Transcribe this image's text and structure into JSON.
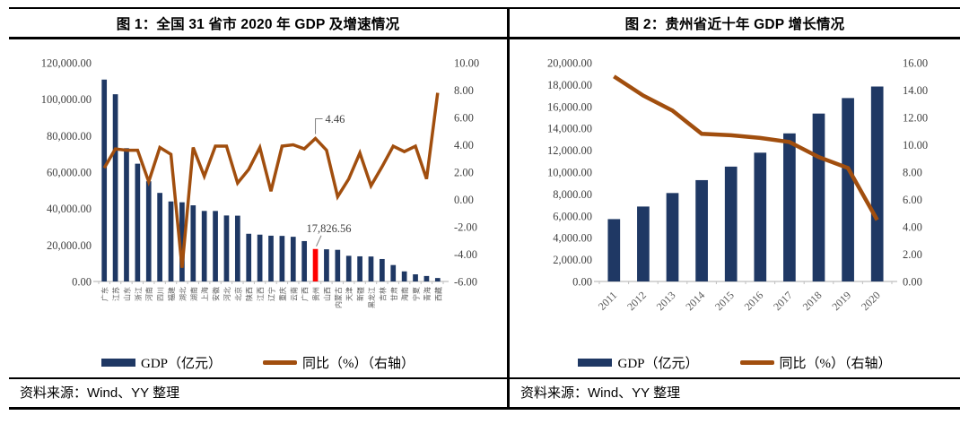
{
  "colors": {
    "bar": "#1F3864",
    "line": "#A14E0E",
    "highlight_bar": "#FF0000",
    "axis_line": "#BFBFBF",
    "tick_text": "#404040",
    "category_text": "#595959",
    "border": "#000000"
  },
  "panels": [
    {
      "title": "图 1：全国 31 省市 2020 年 GDP 及增速情况",
      "source": "资料来源：Wind、YY 整理",
      "legend": [
        {
          "swatch": "bar",
          "label": "GDP（亿元）"
        },
        {
          "swatch": "line",
          "label": "同比（%）（右轴）"
        }
      ],
      "chart_data": {
        "type": "bar",
        "title": "图 1：全国 31 省市 2020 年 GDP 及增速情况",
        "xlabel": "",
        "ylabel": "",
        "grid": false,
        "legend_position": "bottom",
        "label_rotation": -90,
        "categories": [
          "广东",
          "江苏",
          "山东",
          "浙江",
          "河南",
          "四川",
          "福建",
          "湖北",
          "湖南",
          "上海",
          "安徽",
          "河北",
          "北京",
          "陕西",
          "江西",
          "辽宁",
          "重庆",
          "云南",
          "广西",
          "贵州",
          "山西",
          "内蒙古",
          "天津",
          "新疆",
          "黑龙江",
          "吉林",
          "甘肃",
          "海南",
          "宁夏",
          "青海",
          "西藏"
        ],
        "series": [
          {
            "name": "GDP（亿元）",
            "type": "bar",
            "axis": "left",
            "values": [
              110760.94,
              102718.98,
              73129.0,
              64613.34,
              54997.07,
              48598.76,
              43903.89,
              43443.46,
              41781.49,
              38700.58,
              38680.63,
              36206.89,
              36102.55,
              26181.86,
              25691.5,
              25115.0,
              25002.79,
              24521.9,
              22156.69,
              17826.56,
              17651.93,
              17359.8,
              14083.73,
              13797.58,
              13698.5,
              12311.32,
              9016.7,
              5532.39,
              3920.55,
              3005.92,
              1902.74
            ]
          },
          {
            "name": "同比（%）（右轴）",
            "type": "line",
            "axis": "right",
            "values": [
              2.3,
              3.7,
              3.6,
              3.6,
              1.3,
              3.8,
              3.3,
              -5.0,
              3.8,
              1.7,
              3.9,
              3.9,
              1.2,
              2.2,
              3.8,
              0.6,
              3.9,
              4.0,
              3.7,
              4.46,
              3.6,
              0.2,
              1.5,
              3.4,
              1.0,
              2.4,
              3.9,
              3.5,
              3.9,
              1.5,
              7.8
            ]
          }
        ],
        "highlight": {
          "series": 0,
          "index": 19,
          "category": "贵州"
        },
        "left_axis": {
          "min": 0,
          "max": 120000,
          "tick_values": [
            0,
            20000,
            40000,
            60000,
            80000,
            100000,
            120000
          ],
          "tick_labels": [
            "0.00",
            "20,000.00",
            "40,000.00",
            "60,000.00",
            "80,000.00",
            "100,000.00",
            "120,000.00"
          ]
        },
        "right_axis": {
          "min": -6,
          "max": 10,
          "tick_values": [
            -6,
            -4,
            -2,
            0,
            2,
            4,
            6,
            8,
            10
          ],
          "tick_labels": [
            "-6.00",
            "-4.00",
            "-2.00",
            "0.00",
            "2.00",
            "4.00",
            "6.00",
            "8.00",
            "10.00"
          ]
        },
        "annotations": [
          {
            "text": "4.46",
            "attach": "line",
            "index": 19
          },
          {
            "text": "17,826.56",
            "attach": "bar",
            "index": 19
          }
        ]
      }
    },
    {
      "title": "图 2：贵州省近十年 GDP 增长情况",
      "source": "资料来源：Wind、YY 整理",
      "legend": [
        {
          "swatch": "bar",
          "label": "GDP（亿元）"
        },
        {
          "swatch": "line",
          "label": "同比（%）（右轴）"
        }
      ],
      "chart_data": {
        "type": "bar",
        "title": "图 2：贵州省近十年 GDP 增长情况",
        "xlabel": "",
        "ylabel": "",
        "grid": false,
        "legend_position": "bottom",
        "label_rotation": -45,
        "categories": [
          "2011",
          "2012",
          "2013",
          "2014",
          "2015",
          "2016",
          "2017",
          "2018",
          "2019",
          "2020"
        ],
        "series": [
          {
            "name": "GDP（亿元）",
            "type": "bar",
            "axis": "left",
            "values": [
              5701.84,
              6852.2,
              8086.86,
              9266.39,
              10502.56,
              11776.73,
              13540.83,
              15353.21,
              16769.34,
              17826.56
            ]
          },
          {
            "name": "同比（%）（右轴）",
            "type": "line",
            "axis": "right",
            "values": [
              15.0,
              13.6,
              12.5,
              10.8,
              10.7,
              10.5,
              10.2,
              9.1,
              8.3,
              4.5
            ]
          }
        ],
        "left_axis": {
          "min": 0,
          "max": 20000,
          "tick_values": [
            0,
            2000,
            4000,
            6000,
            8000,
            10000,
            12000,
            14000,
            16000,
            18000,
            20000
          ],
          "tick_labels": [
            "0.00",
            "2,000.00",
            "4,000.00",
            "6,000.00",
            "8,000.00",
            "10,000.00",
            "12,000.00",
            "14,000.00",
            "16,000.00",
            "18,000.00",
            "20,000.00"
          ]
        },
        "right_axis": {
          "min": 0,
          "max": 16,
          "tick_values": [
            0,
            2,
            4,
            6,
            8,
            10,
            12,
            14,
            16
          ],
          "tick_labels": [
            "0.00",
            "2.00",
            "4.00",
            "6.00",
            "8.00",
            "10.00",
            "12.00",
            "14.00",
            "16.00"
          ]
        },
        "annotations": []
      }
    }
  ]
}
